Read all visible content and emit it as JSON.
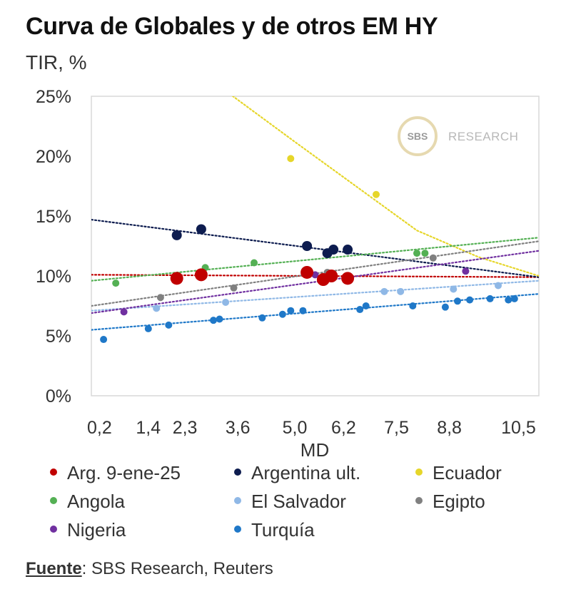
{
  "chart_data": {
    "type": "scatter",
    "title": "Curva de Globales y de otros EM HY",
    "subtitle": "TIR, %",
    "xlabel": "MD",
    "ylabel": "TIR, %",
    "xlim": [
      0,
      11
    ],
    "ylim": [
      0,
      25
    ],
    "xtick_values": [
      0.2,
      1.4,
      2.3,
      3.6,
      5.0,
      6.2,
      7.5,
      8.8,
      10.5
    ],
    "xtick_labels": [
      "0,2",
      "1,4",
      "2,3",
      "3,6",
      "5,0",
      "6,2",
      "7,5",
      "8,8",
      "10,5"
    ],
    "ytick_values": [
      0,
      5,
      10,
      15,
      20,
      25
    ],
    "ytick_labels": [
      "0%",
      "5%",
      "10%",
      "15%",
      "20%",
      "25%"
    ],
    "watermark": {
      "badge": "SBS",
      "text": "RESEARCH"
    },
    "series": [
      {
        "name": "Arg. 9-ene-25",
        "color": "#c00000",
        "size": "large",
        "points": [
          [
            2.1,
            9.8
          ],
          [
            2.7,
            10.1
          ],
          [
            5.3,
            10.3
          ],
          [
            5.7,
            9.7
          ],
          [
            5.9,
            10.0
          ],
          [
            6.3,
            9.8
          ]
        ],
        "trend": {
          "type": "linear",
          "x0": 0,
          "y0": 10.1,
          "x1": 11,
          "y1": 9.9
        }
      },
      {
        "name": "Argentina ult.",
        "color": "#0d1c4f",
        "size": "medium",
        "points": [
          [
            2.1,
            13.4
          ],
          [
            2.7,
            13.9
          ],
          [
            5.3,
            12.5
          ],
          [
            5.8,
            11.9
          ],
          [
            5.95,
            12.2
          ],
          [
            6.3,
            12.2
          ]
        ],
        "trend": {
          "type": "linear",
          "x0": 0,
          "y0": 14.7,
          "x1": 11,
          "y1": 9.9
        }
      },
      {
        "name": "Ecuador",
        "color": "#e6d62a",
        "size": "small",
        "points": [
          [
            4.9,
            19.8
          ],
          [
            7.0,
            16.8
          ]
        ],
        "trend": {
          "type": "curve",
          "points": [
            [
              3.4,
              25.2
            ],
            [
              5.0,
              21.2
            ],
            [
              6.5,
              17.5
            ],
            [
              8.0,
              13.8
            ],
            [
              9.5,
              11.6
            ],
            [
              11.0,
              10.0
            ]
          ]
        }
      },
      {
        "name": "Angola",
        "color": "#54b054",
        "size": "small",
        "points": [
          [
            0.6,
            9.4
          ],
          [
            2.8,
            10.7
          ],
          [
            4.0,
            11.1
          ],
          [
            8.0,
            11.9
          ],
          [
            8.2,
            11.9
          ]
        ],
        "trend": {
          "type": "linear",
          "x0": 0,
          "y0": 9.6,
          "x1": 11,
          "y1": 13.2
        }
      },
      {
        "name": "El Salvador",
        "color": "#8fb8e6",
        "size": "small",
        "points": [
          [
            1.6,
            7.3
          ],
          [
            3.3,
            7.8
          ],
          [
            7.2,
            8.7
          ],
          [
            7.6,
            8.7
          ],
          [
            8.9,
            8.9
          ],
          [
            10.0,
            9.2
          ]
        ],
        "trend": {
          "type": "linear",
          "x0": 0,
          "y0": 7.1,
          "x1": 11,
          "y1": 9.6
        }
      },
      {
        "name": "Egipto",
        "color": "#808080",
        "size": "small",
        "points": [
          [
            1.7,
            8.2
          ],
          [
            3.5,
            9.0
          ],
          [
            5.8,
            10.3
          ],
          [
            8.4,
            11.5
          ]
        ],
        "trend": {
          "type": "linear",
          "x0": 0,
          "y0": 7.5,
          "x1": 11,
          "y1": 12.9
        }
      },
      {
        "name": "Nigeria",
        "color": "#7030a0",
        "size": "small",
        "points": [
          [
            0.8,
            7.0
          ],
          [
            5.5,
            10.1
          ],
          [
            9.2,
            10.4
          ]
        ],
        "trend": {
          "type": "linear",
          "x0": 0,
          "y0": 6.9,
          "x1": 11,
          "y1": 12.1
        }
      },
      {
        "name": "Turquía",
        "color": "#1f78c8",
        "size": "small",
        "points": [
          [
            0.3,
            4.7
          ],
          [
            1.4,
            5.6
          ],
          [
            1.9,
            5.9
          ],
          [
            3.0,
            6.3
          ],
          [
            3.15,
            6.4
          ],
          [
            4.2,
            6.5
          ],
          [
            4.7,
            6.8
          ],
          [
            4.9,
            7.1
          ],
          [
            5.2,
            7.1
          ],
          [
            6.6,
            7.2
          ],
          [
            6.75,
            7.5
          ],
          [
            7.9,
            7.5
          ],
          [
            8.7,
            7.4
          ],
          [
            9.0,
            7.9
          ],
          [
            9.3,
            8.0
          ],
          [
            9.8,
            8.1
          ],
          [
            10.25,
            8.0
          ],
          [
            10.4,
            8.1
          ]
        ],
        "trend": {
          "type": "linear",
          "x0": 0,
          "y0": 5.5,
          "x1": 11,
          "y1": 8.5
        }
      }
    ]
  },
  "legend": {
    "items": [
      {
        "label": "Arg. 9-ene-25",
        "color": "#c00000"
      },
      {
        "label": "Argentina ult.",
        "color": "#0d1c4f"
      },
      {
        "label": "Ecuador",
        "color": "#e6d62a"
      },
      {
        "label": "Angola",
        "color": "#54b054"
      },
      {
        "label": "El Salvador",
        "color": "#8fb8e6"
      },
      {
        "label": "Egipto",
        "color": "#808080"
      },
      {
        "label": "Nigeria",
        "color": "#7030a0"
      },
      {
        "label": "Turquía",
        "color": "#1f78c8"
      }
    ]
  },
  "source": {
    "label": "Fuente",
    "text": ": SBS Research, Reuters"
  }
}
